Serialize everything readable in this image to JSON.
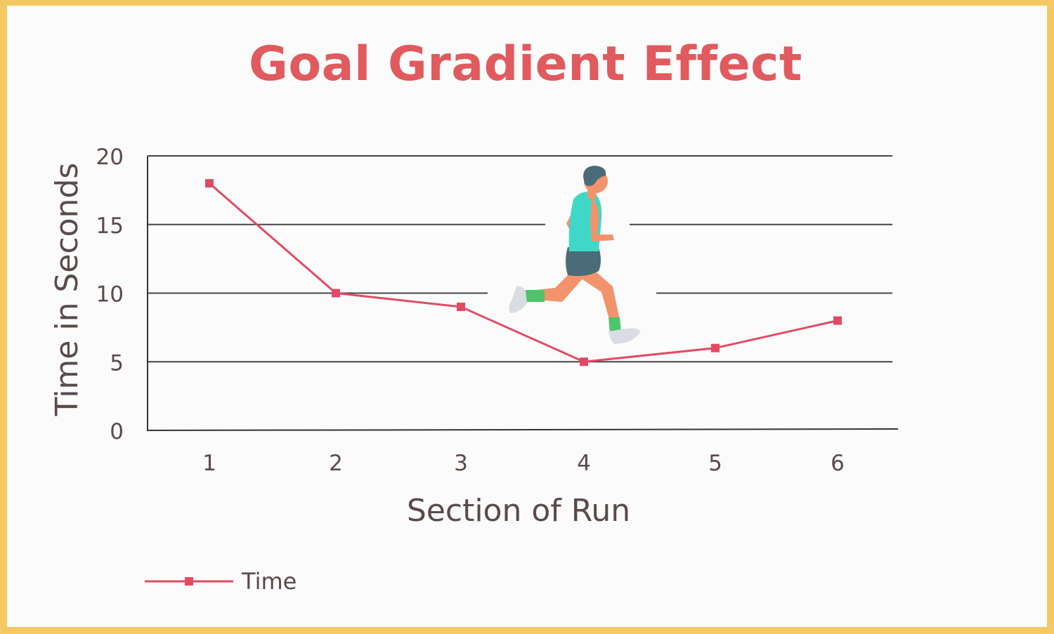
{
  "chart_data": {
    "type": "line",
    "title": "Goal Gradient Effect",
    "xlabel": "Section of Run",
    "ylabel": "Time in Seconds",
    "categories": [
      "1",
      "2",
      "3",
      "4",
      "5",
      "6"
    ],
    "series": [
      {
        "name": "Time",
        "values": [
          18,
          10,
          9,
          5,
          6,
          8
        ],
        "color": "#e24a63"
      }
    ],
    "ylim": [
      0,
      20
    ],
    "yticks": [
      0,
      5,
      10,
      15,
      20
    ],
    "grid": true,
    "legend": "bottom-left",
    "decoration": "runner-illustration"
  }
}
